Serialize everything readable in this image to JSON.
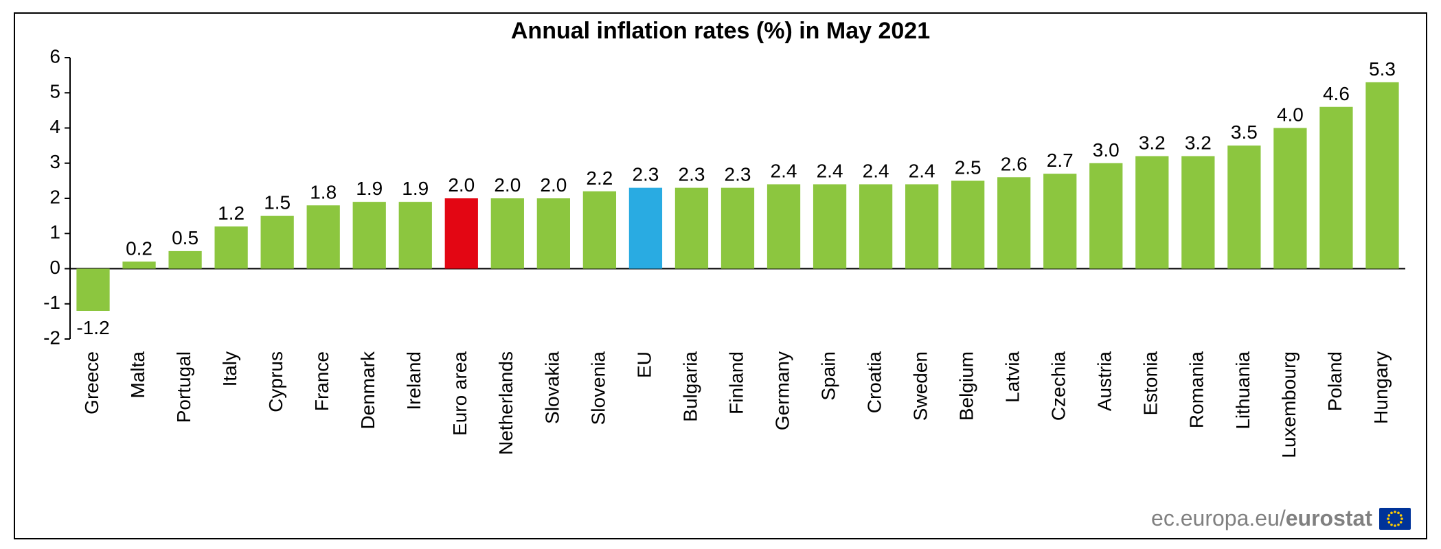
{
  "chart": {
    "type": "bar",
    "title": "Annual inflation rates (%) in May 2021",
    "title_fontsize": 34,
    "title_weight": "bold",
    "title_color": "#000000",
    "label_fontsize": 28,
    "value_label_fontsize": 28,
    "value_label_color": "#000000",
    "value_label_decimals": 1,
    "tick_fontsize": 28,
    "tick_color": "#000000",
    "background_color": "#ffffff",
    "border_color": "#000000",
    "axis_color": "#000000",
    "ylim": [
      -2,
      6
    ],
    "ytick_step": 1,
    "yticks": [
      -2,
      -1,
      0,
      1,
      2,
      3,
      4,
      5,
      6
    ],
    "grid": false,
    "bar_width": 0.72,
    "default_bar_color": "#8cc63f",
    "categories": [
      "Greece",
      "Malta",
      "Portugal",
      "Italy",
      "Cyprus",
      "France",
      "Denmark",
      "Ireland",
      "Euro area",
      "Netherlands",
      "Slovakia",
      "Slovenia",
      "EU",
      "Bulgaria",
      "Finland",
      "Germany",
      "Spain",
      "Croatia",
      "Sweden",
      "Belgium",
      "Latvia",
      "Czechia",
      "Austria",
      "Estonia",
      "Romania",
      "Lithuania",
      "Luxembourg",
      "Poland",
      "Hungary"
    ],
    "values": [
      -1.2,
      0.2,
      0.5,
      1.2,
      1.5,
      1.8,
      1.9,
      1.9,
      2.0,
      2.0,
      2.0,
      2.2,
      2.3,
      2.3,
      2.3,
      2.4,
      2.4,
      2.4,
      2.4,
      2.5,
      2.6,
      2.7,
      3.0,
      3.2,
      3.2,
      3.5,
      4.0,
      4.6,
      5.3
    ],
    "bar_colors": [
      "#8cc63f",
      "#8cc63f",
      "#8cc63f",
      "#8cc63f",
      "#8cc63f",
      "#8cc63f",
      "#8cc63f",
      "#8cc63f",
      "#e30613",
      "#8cc63f",
      "#8cc63f",
      "#8cc63f",
      "#29abe2",
      "#8cc63f",
      "#8cc63f",
      "#8cc63f",
      "#8cc63f",
      "#8cc63f",
      "#8cc63f",
      "#8cc63f",
      "#8cc63f",
      "#8cc63f",
      "#8cc63f",
      "#8cc63f",
      "#8cc63f",
      "#8cc63f",
      "#8cc63f",
      "#8cc63f",
      "#8cc63f"
    ],
    "xlabel_rotation": -90,
    "xlabel_color": "#000000",
    "footer": {
      "text_light": "ec.europa.eu/",
      "text_bold": "eurostat",
      "fontsize": 32,
      "color": "#808080",
      "flag": {
        "bg": "#003399",
        "star": "#ffcc00",
        "width": 46,
        "height": 32
      }
    }
  }
}
